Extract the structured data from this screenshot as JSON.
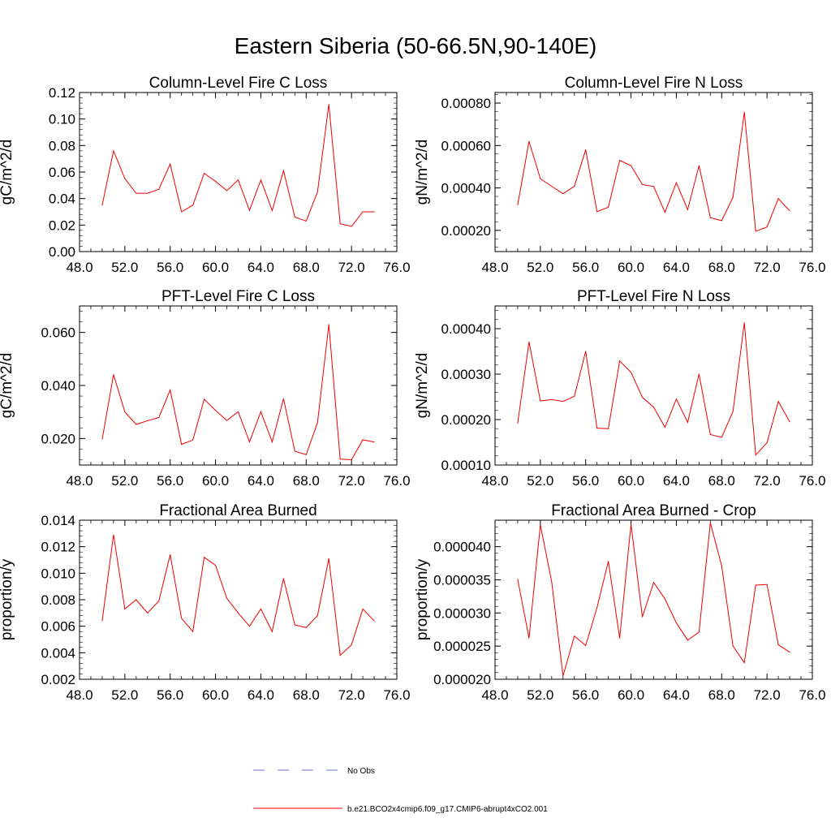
{
  "figure_title": "Eastern Siberia (50-66.5N,90-140E)",
  "legend": {
    "items": [
      {
        "label": "No Obs",
        "color": "#6b6bd6",
        "dash": true
      },
      {
        "label": "b.e21.BCO2x4cmip6.f09_g17.CMIP6-abrupt4xCO2.001",
        "color": "#ee0000",
        "dash": false
      }
    ]
  },
  "chart_data": [
    {
      "type": "line",
      "title": "Column-Level Fire C Loss",
      "ylabel": "gC/m^2/d",
      "xlim": [
        48,
        76
      ],
      "ylim": [
        0,
        0.12
      ],
      "xticks": [
        "48.0",
        "52.0",
        "56.0",
        "60.0",
        "64.0",
        "68.0",
        "72.0",
        "76.0"
      ],
      "yticks": [
        {
          "v": 0.0,
          "label": "0.00"
        },
        {
          "v": 0.02,
          "label": "0.02"
        },
        {
          "v": 0.04,
          "label": "0.04"
        },
        {
          "v": 0.06,
          "label": "0.06"
        },
        {
          "v": 0.08,
          "label": "0.08"
        },
        {
          "v": 0.1,
          "label": "0.10"
        },
        {
          "v": 0.12,
          "label": "0.12"
        }
      ],
      "series": [
        {
          "color": "#ee0000",
          "x": [
            50,
            51,
            52,
            53,
            54,
            55,
            56,
            57,
            58,
            59,
            60,
            61,
            62,
            63,
            64,
            65,
            66,
            67,
            68,
            69,
            70,
            71,
            72,
            73,
            74
          ],
          "y": [
            0.035,
            0.076,
            0.055,
            0.044,
            0.044,
            0.047,
            0.066,
            0.03,
            0.035,
            0.059,
            0.053,
            0.046,
            0.054,
            0.031,
            0.054,
            0.031,
            0.061,
            0.026,
            0.023,
            0.045,
            0.111,
            0.021,
            0.019,
            0.03,
            0.03
          ]
        }
      ]
    },
    {
      "type": "line",
      "title": "Column-Level Fire N Loss",
      "ylabel": "gN/m^2/d",
      "xlim": [
        48,
        76
      ],
      "ylim": [
        0.0001,
        0.00085
      ],
      "xticks": [
        "48.0",
        "52.0",
        "56.0",
        "60.0",
        "64.0",
        "68.0",
        "72.0",
        "76.0"
      ],
      "yticks": [
        {
          "v": 0.0002,
          "label": "0.00020"
        },
        {
          "v": 0.0004,
          "label": "0.00040"
        },
        {
          "v": 0.0006,
          "label": "0.00060"
        },
        {
          "v": 0.0008,
          "label": "0.00080"
        }
      ],
      "series": [
        {
          "color": "#ee0000",
          "x": [
            50,
            51,
            52,
            53,
            54,
            55,
            56,
            57,
            58,
            59,
            60,
            61,
            62,
            63,
            64,
            65,
            66,
            67,
            68,
            69,
            70,
            71,
            72,
            73,
            74
          ],
          "y": [
            0.00032,
            0.00062,
            0.000443,
            0.000408,
            0.000373,
            0.000408,
            0.00058,
            0.000288,
            0.000309,
            0.00053,
            0.000505,
            0.000416,
            0.000407,
            0.000285,
            0.000425,
            0.000298,
            0.000505,
            0.00026,
            0.000246,
            0.000356,
            0.000757,
            0.000196,
            0.000216,
            0.00035,
            0.000292
          ]
        }
      ]
    },
    {
      "type": "line",
      "title": "PFT-Level Fire C Loss",
      "ylabel": "gC/m^2/d",
      "xlim": [
        48,
        76
      ],
      "ylim": [
        0.01,
        0.07
      ],
      "xticks": [
        "48.0",
        "52.0",
        "56.0",
        "60.0",
        "64.0",
        "68.0",
        "72.0",
        "76.0"
      ],
      "yticks": [
        {
          "v": 0.02,
          "label": "0.020"
        },
        {
          "v": 0.04,
          "label": "0.040"
        },
        {
          "v": 0.06,
          "label": "0.060"
        }
      ],
      "series": [
        {
          "color": "#ee0000",
          "x": [
            50,
            51,
            52,
            53,
            54,
            55,
            56,
            57,
            58,
            59,
            60,
            61,
            62,
            63,
            64,
            65,
            66,
            67,
            68,
            69,
            70,
            71,
            72,
            73,
            74
          ],
          "y": [
            0.0197,
            0.0441,
            0.03,
            0.0253,
            0.0267,
            0.0279,
            0.0383,
            0.0178,
            0.0194,
            0.0348,
            0.0306,
            0.0268,
            0.0301,
            0.0187,
            0.0301,
            0.0187,
            0.035,
            0.0152,
            0.0139,
            0.026,
            0.063,
            0.0122,
            0.012,
            0.0195,
            0.0187
          ]
        }
      ]
    },
    {
      "type": "line",
      "title": "PFT-Level Fire N Loss",
      "ylabel": "gN/m^2/d",
      "xlim": [
        48,
        76
      ],
      "ylim": [
        0.0001,
        0.00045
      ],
      "xticks": [
        "48.0",
        "52.0",
        "56.0",
        "60.0",
        "64.0",
        "68.0",
        "72.0",
        "76.0"
      ],
      "yticks": [
        {
          "v": 0.0001,
          "label": "0.00010"
        },
        {
          "v": 0.0002,
          "label": "0.00020"
        },
        {
          "v": 0.0003,
          "label": "0.00030"
        },
        {
          "v": 0.0004,
          "label": "0.00040"
        }
      ],
      "series": [
        {
          "color": "#ee0000",
          "x": [
            50,
            51,
            52,
            53,
            54,
            55,
            56,
            57,
            58,
            59,
            60,
            61,
            62,
            63,
            64,
            65,
            66,
            67,
            68,
            69,
            70,
            71,
            72,
            73,
            74
          ],
          "y": [
            0.000192,
            0.000371,
            0.000241,
            0.000244,
            0.00024,
            0.000251,
            0.00035,
            0.000181,
            0.00018,
            0.000329,
            0.000304,
            0.000249,
            0.000227,
            0.000183,
            0.000245,
            0.000194,
            0.0003,
            0.000167,
            0.000161,
            0.000218,
            0.000413,
            0.000122,
            0.000149,
            0.00024,
            0.000195
          ]
        }
      ]
    },
    {
      "type": "line",
      "title": "Fractional Area Burned",
      "ylabel": "proportion/y",
      "xlim": [
        48,
        76
      ],
      "ylim": [
        0.002,
        0.014
      ],
      "xticks": [
        "48.0",
        "52.0",
        "56.0",
        "60.0",
        "64.0",
        "68.0",
        "72.0",
        "76.0"
      ],
      "yticks": [
        {
          "v": 0.002,
          "label": "0.002"
        },
        {
          "v": 0.004,
          "label": "0.004"
        },
        {
          "v": 0.006,
          "label": "0.006"
        },
        {
          "v": 0.008,
          "label": "0.008"
        },
        {
          "v": 0.01,
          "label": "0.010"
        },
        {
          "v": 0.012,
          "label": "0.012"
        },
        {
          "v": 0.014,
          "label": "0.014"
        }
      ],
      "series": [
        {
          "color": "#ee0000",
          "x": [
            50,
            51,
            52,
            53,
            54,
            55,
            56,
            57,
            58,
            59,
            60,
            61,
            62,
            63,
            64,
            65,
            66,
            67,
            68,
            69,
            70,
            71,
            72,
            73,
            74
          ],
          "y": [
            0.0064,
            0.0129,
            0.0073,
            0.008,
            0.007,
            0.0079,
            0.0114,
            0.0066,
            0.0056,
            0.0112,
            0.0106,
            0.0081,
            0.007,
            0.006,
            0.0073,
            0.0056,
            0.0096,
            0.0061,
            0.0059,
            0.0068,
            0.0111,
            0.0038,
            0.0046,
            0.0073,
            0.0064
          ]
        }
      ]
    },
    {
      "type": "line",
      "title": "Fractional Area Burned - Crop",
      "ylabel": "proportion/y",
      "xlim": [
        48,
        76
      ],
      "ylim": [
        2e-05,
        4.4e-05
      ],
      "xticks": [
        "48.0",
        "52.0",
        "56.0",
        "60.0",
        "64.0",
        "68.0",
        "72.0",
        "76.0"
      ],
      "yticks": [
        {
          "v": 2e-05,
          "label": "0.000020"
        },
        {
          "v": 2.5e-05,
          "label": "0.000025"
        },
        {
          "v": 3e-05,
          "label": "0.000030"
        },
        {
          "v": 3.5e-05,
          "label": "0.000035"
        },
        {
          "v": 4e-05,
          "label": "0.000040"
        }
      ],
      "series": [
        {
          "color": "#ee0000",
          "x": [
            50,
            51,
            52,
            53,
            54,
            55,
            56,
            57,
            58,
            59,
            60,
            61,
            62,
            63,
            64,
            65,
            66,
            67,
            68,
            69,
            70,
            71,
            72,
            73,
            74
          ],
          "y": [
            3.51e-05,
            2.62e-05,
            4.33e-05,
            3.47e-05,
            2.05e-05,
            2.65e-05,
            2.51e-05,
            3.08e-05,
            3.78e-05,
            2.62e-05,
            4.34e-05,
            2.94e-05,
            3.46e-05,
            3.21e-05,
            2.85e-05,
            2.59e-05,
            2.71e-05,
            4.36e-05,
            3.71e-05,
            2.5e-05,
            2.25e-05,
            3.42e-05,
            3.43e-05,
            2.52e-05,
            2.41e-05
          ]
        }
      ]
    }
  ]
}
